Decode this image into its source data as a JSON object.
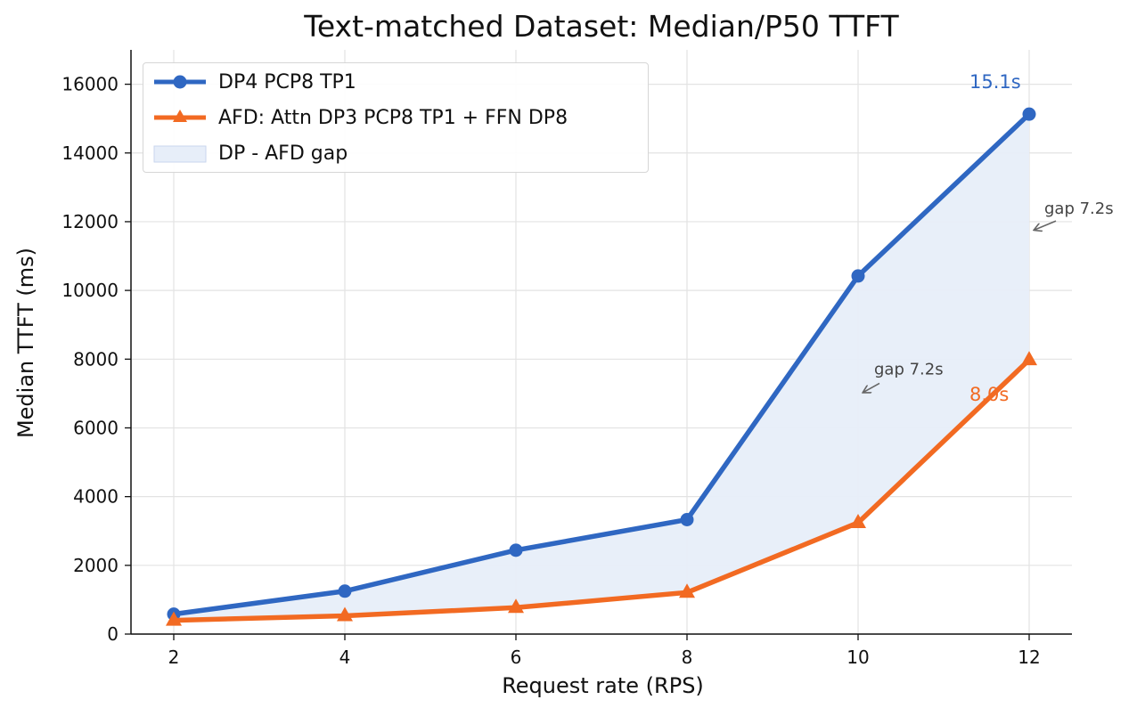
{
  "chart_data": {
    "type": "line",
    "title": "Text-matched Dataset: Median/P50 TTFT",
    "xlabel": "Request rate (RPS)",
    "ylabel": "Median TTFT (ms)",
    "x": [
      2,
      4,
      6,
      8,
      10,
      12
    ],
    "xlim": [
      1.5,
      12.5
    ],
    "ylim": [
      0,
      17000
    ],
    "xticks": [
      2,
      4,
      6,
      8,
      10,
      12
    ],
    "yticks": [
      0,
      2000,
      4000,
      6000,
      8000,
      10000,
      12000,
      14000,
      16000
    ],
    "grid": true,
    "legend_position": "top-left",
    "series": [
      {
        "name": "DP4 PCP8 TP1",
        "color": "#2f67c2",
        "marker": "circle",
        "values": [
          580,
          1250,
          2440,
          3330,
          10420,
          15130
        ]
      },
      {
        "name": "AFD: Attn DP3 PCP8 TP1 + FFN DP8",
        "color": "#f26a22",
        "marker": "triangle",
        "values": [
          400,
          530,
          770,
          1210,
          3240,
          7980
        ]
      }
    ],
    "fill": {
      "name": "DP - AFD gap",
      "color": "#e7eef9"
    },
    "annotations": [
      {
        "text": "15.1s",
        "color": "#2f67c2"
      },
      {
        "text": "8.0s",
        "color": "#f26a22"
      },
      {
        "text": "gap 7.2s",
        "color": "#444444"
      },
      {
        "text": "gap 7.2s",
        "color": "#444444"
      }
    ]
  }
}
